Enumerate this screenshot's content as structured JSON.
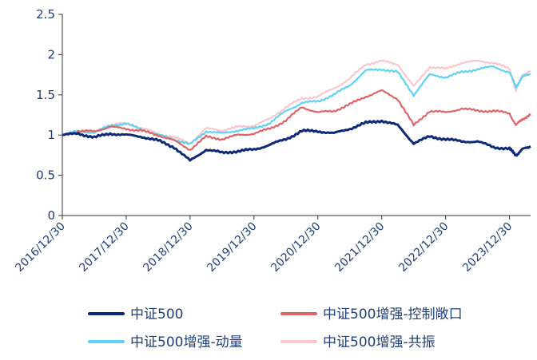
{
  "chart_data": {
    "type": "line",
    "title": "",
    "xlabel": "",
    "ylabel": "",
    "ylim": [
      0,
      2.5
    ],
    "yticks": [
      0,
      0.5,
      1,
      1.5,
      2,
      2.5
    ],
    "ytick_labels": [
      "0",
      "0.5",
      "1",
      "1.5",
      "2",
      "2.5"
    ],
    "xlim": [
      0,
      7.33
    ],
    "xticks": [
      0,
      1,
      2,
      3,
      4,
      5,
      6,
      7
    ],
    "xtick_labels": [
      "2016/12/30",
      "2017/12/30",
      "2018/12/30",
      "2019/12/30",
      "2020/12/30",
      "2021/12/30",
      "2022/12/30",
      "2023/12/30"
    ],
    "grid": false,
    "legend_position": "bottom",
    "x": [
      0,
      0.25,
      0.5,
      0.75,
      1,
      1.25,
      1.5,
      1.75,
      2,
      2.25,
      2.5,
      2.75,
      3,
      3.25,
      3.5,
      3.75,
      4,
      4.25,
      4.5,
      4.75,
      5,
      5.25,
      5.5,
      5.75,
      6,
      6.25,
      6.5,
      6.75,
      7,
      7.1,
      7.2,
      7.33
    ],
    "series": [
      {
        "name": "中证500",
        "color": "#0d2a7a",
        "values": [
          1.0,
          1.02,
          0.97,
          1.02,
          1.0,
          0.98,
          0.93,
          0.85,
          0.68,
          0.82,
          0.78,
          0.8,
          0.82,
          0.88,
          0.95,
          1.05,
          1.05,
          1.02,
          1.08,
          1.15,
          1.18,
          1.12,
          0.9,
          0.98,
          0.95,
          0.92,
          0.92,
          0.85,
          0.83,
          0.75,
          0.82,
          0.86
        ]
      },
      {
        "name": "中证500增强-控制敞口",
        "color": "#e06468",
        "values": [
          1.0,
          1.04,
          1.05,
          1.1,
          1.08,
          1.05,
          1.0,
          0.93,
          0.82,
          0.98,
          0.95,
          1.0,
          1.02,
          1.08,
          1.18,
          1.35,
          1.28,
          1.3,
          1.38,
          1.48,
          1.55,
          1.45,
          1.12,
          1.3,
          1.28,
          1.33,
          1.3,
          1.3,
          1.27,
          1.12,
          1.2,
          1.25
        ]
      },
      {
        "name": "中证500增强-动量",
        "color": "#5fd2f5",
        "values": [
          1.0,
          1.05,
          1.03,
          1.12,
          1.14,
          1.07,
          1.0,
          0.95,
          0.88,
          1.05,
          1.02,
          1.06,
          1.08,
          1.15,
          1.3,
          1.4,
          1.42,
          1.5,
          1.62,
          1.8,
          1.82,
          1.78,
          1.5,
          1.75,
          1.72,
          1.78,
          1.82,
          1.85,
          1.78,
          1.6,
          1.72,
          1.76
        ]
      },
      {
        "name": "中证500增强-共振",
        "color": "#f8c8cc",
        "values": [
          1.0,
          1.05,
          1.04,
          1.12,
          1.15,
          1.08,
          1.02,
          0.97,
          0.9,
          1.08,
          1.06,
          1.1,
          1.12,
          1.2,
          1.35,
          1.45,
          1.48,
          1.58,
          1.7,
          1.88,
          1.92,
          1.88,
          1.6,
          1.85,
          1.82,
          1.9,
          1.92,
          1.9,
          1.82,
          1.55,
          1.75,
          1.8
        ]
      }
    ]
  }
}
